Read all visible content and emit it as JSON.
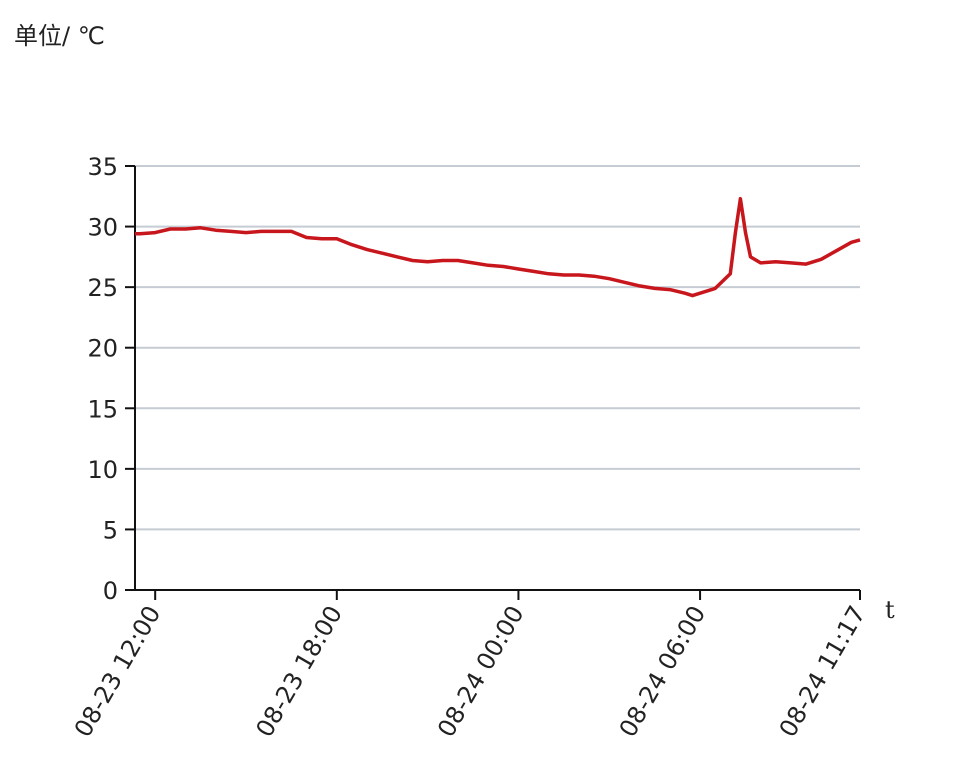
{
  "chart_data": {
    "type": "line",
    "unit_label": "单位/ ℃",
    "x_axis_label": "t",
    "x": [
      "08-23 11:20",
      "08-23 11:30",
      "08-23 12:00",
      "08-23 12:30",
      "08-23 13:00",
      "08-23 13:30",
      "08-23 14:00",
      "08-23 14:30",
      "08-23 15:00",
      "08-23 15:30",
      "08-23 16:00",
      "08-23 16:30",
      "08-23 17:00",
      "08-23 17:30",
      "08-23 18:00",
      "08-23 18:30",
      "08-23 19:00",
      "08-23 19:30",
      "08-23 20:00",
      "08-23 20:30",
      "08-23 21:00",
      "08-23 21:30",
      "08-23 22:00",
      "08-23 22:30",
      "08-23 23:00",
      "08-23 23:30",
      "08-24 00:00",
      "08-24 00:30",
      "08-24 01:00",
      "08-24 01:30",
      "08-24 02:00",
      "08-24 02:30",
      "08-24 03:00",
      "08-24 03:30",
      "08-24 04:00",
      "08-24 04:30",
      "08-24 05:00",
      "08-24 05:30",
      "08-24 05:45",
      "08-24 06:30",
      "08-24 07:00",
      "08-24 07:10",
      "08-24 07:20",
      "08-24 07:30",
      "08-24 07:40",
      "08-24 08:00",
      "08-24 08:30",
      "08-24 09:00",
      "08-24 09:30",
      "08-24 10:00",
      "08-24 10:30",
      "08-24 11:00",
      "08-24 11:17"
    ],
    "values": [
      29.4,
      29.4,
      29.5,
      29.8,
      29.8,
      29.9,
      29.7,
      29.6,
      29.5,
      29.6,
      29.6,
      29.6,
      29.1,
      29.0,
      29.0,
      28.5,
      28.1,
      27.8,
      27.5,
      27.2,
      27.1,
      27.2,
      27.2,
      27.0,
      26.8,
      26.7,
      26.5,
      26.3,
      26.1,
      26.0,
      26.0,
      25.9,
      25.7,
      25.4,
      25.1,
      24.9,
      24.8,
      24.5,
      24.3,
      24.9,
      26.1,
      29.5,
      32.3,
      29.5,
      27.5,
      27.0,
      27.1,
      27.0,
      26.9,
      27.3,
      28.0,
      28.7,
      28.9
    ],
    "color": "#c8161d",
    "xlim": [
      "08-23 11:20",
      "08-24 11:17"
    ],
    "xticks": [
      "08-23 12:00",
      "08-23 18:00",
      "08-24 00:00",
      "08-24 06:00",
      "08-24 11:17"
    ],
    "ylim": [
      0,
      35
    ],
    "yticks": [
      0,
      5,
      10,
      15,
      20,
      25,
      30,
      35
    ],
    "grid": true
  }
}
